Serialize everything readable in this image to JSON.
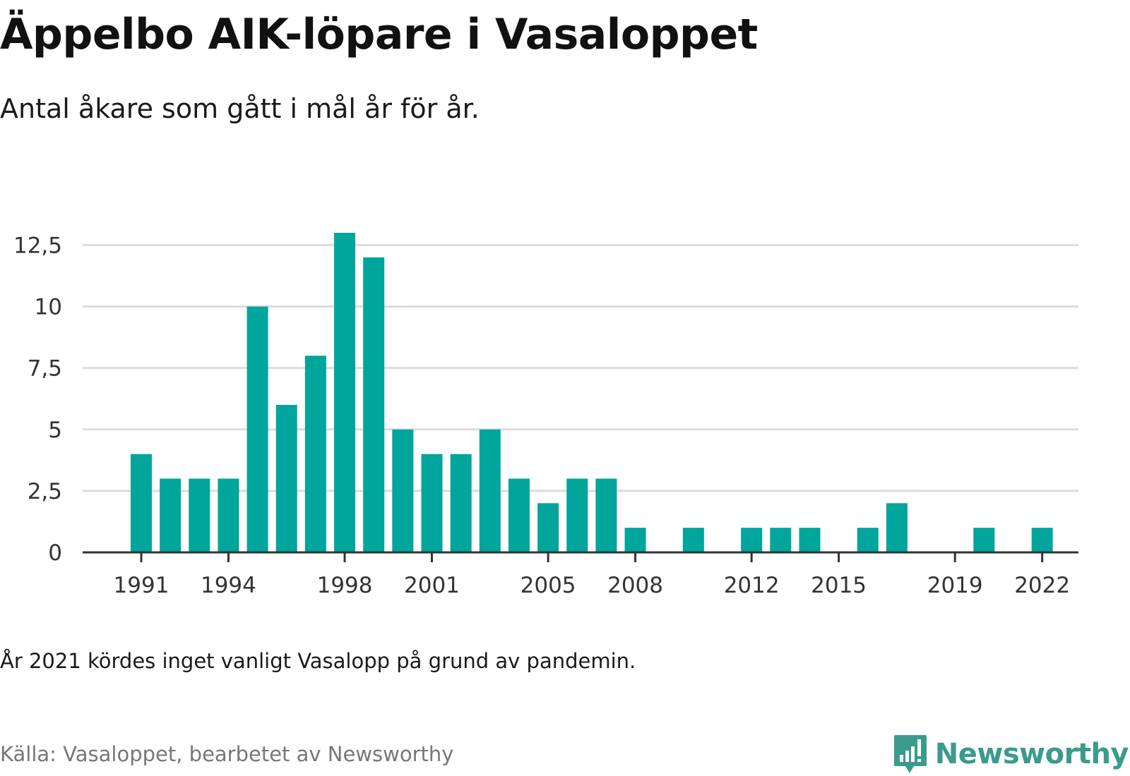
{
  "header": {
    "title": "Äppelbo AIK-löpare i Vasaloppet",
    "subtitle": "Antal åkare som gått i mål år för år."
  },
  "footer": {
    "note": "År 2021 kördes inget vanligt Vasalopp på grund av pandemin.",
    "source": "Källa: Vasaloppet, bearbetet av Newsworthy",
    "brand": "Newsworthy"
  },
  "colors": {
    "bar": "#00a59b",
    "grid": "#dcdcdc",
    "axis": "#333333",
    "brand": "#3a9b8c"
  },
  "icons": {
    "brand_logo": "bar-chart-speech-bubble-icon"
  },
  "chart_data": {
    "type": "bar",
    "x": [
      1991,
      1992,
      1993,
      1994,
      1995,
      1996,
      1997,
      1998,
      1999,
      2000,
      2001,
      2002,
      2003,
      2004,
      2005,
      2006,
      2007,
      2008,
      2009,
      2010,
      2011,
      2012,
      2013,
      2014,
      2015,
      2016,
      2017,
      2018,
      2019,
      2020,
      2021,
      2022
    ],
    "values": [
      4,
      3,
      3,
      3,
      10,
      6,
      8,
      13,
      12,
      5,
      4,
      4,
      5,
      3,
      2,
      3,
      3,
      1,
      0,
      1,
      0,
      1,
      1,
      1,
      0,
      1,
      2,
      0,
      0,
      1,
      0,
      1
    ],
    "x_ticks": [
      "1991",
      "1994",
      "1998",
      "2001",
      "2005",
      "2008",
      "2012",
      "2015",
      "2019",
      "2022"
    ],
    "y_ticks": [
      "0",
      "2,5",
      "5",
      "7,5",
      "10",
      "12,5"
    ],
    "y_tick_values": [
      0,
      2.5,
      5,
      7.5,
      10,
      12.5
    ],
    "ylim": [
      0,
      13
    ],
    "grid": true,
    "xlabel": "",
    "ylabel": ""
  }
}
